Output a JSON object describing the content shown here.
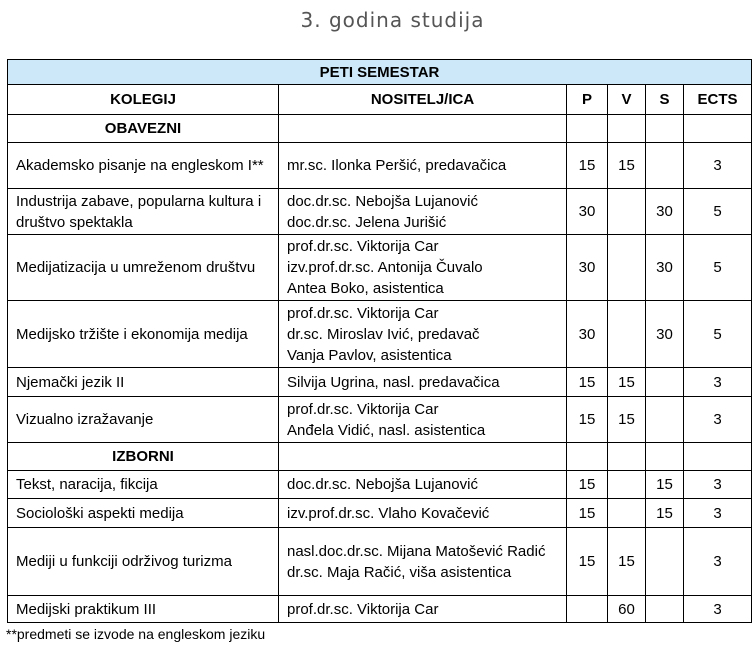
{
  "title": "3. godina studija",
  "semester": "PETI SEMESTAR",
  "headers": [
    "KOLEGIJ",
    "NOSITELJ/ICA",
    "P",
    "V",
    "S",
    "ECTS"
  ],
  "groups": [
    {
      "label": "OBAVEZNI",
      "rows": [
        {
          "kolegij": "Akademsko pisanje na engleskom I**",
          "nositelji": [
            "mr.sc. Ilonka Peršić, predavačica"
          ],
          "p": "15",
          "v": "15",
          "s": "",
          "ects": "3"
        },
        {
          "kolegij": "Industrija zabave, popularna kultura i društvo spektakla",
          "nositelji": [
            "doc.dr.sc. Nebojša Lujanović",
            "doc.dr.sc. Jelena Jurišić"
          ],
          "p": "30",
          "v": "",
          "s": "30",
          "ects": "5"
        },
        {
          "kolegij": "Medijatizacija u umreženom društvu",
          "nositelji": [
            "prof.dr.sc. Viktorija Car",
            "izv.prof.dr.sc. Antonija Čuvalo",
            "Antea Boko, asistentica"
          ],
          "p": "30",
          "v": "",
          "s": "30",
          "ects": "5"
        },
        {
          "kolegij": "Medijsko tržište i ekonomija medija",
          "nositelji": [
            "prof.dr.sc. Viktorija Car",
            "dr.sc. Miroslav Ivić, predavač",
            "Vanja Pavlov, asistentica"
          ],
          "p": "30",
          "v": "",
          "s": "30",
          "ects": "5"
        },
        {
          "kolegij": "Njemački jezik II",
          "nositelji": [
            "Silvija Ugrina, nasl. predavačica"
          ],
          "p": "15",
          "v": "15",
          "s": "",
          "ects": "3"
        },
        {
          "kolegij": "Vizualno izražavanje",
          "nositelji": [
            "prof.dr.sc. Viktorija Car",
            "Anđela Vidić, nasl. asistentica"
          ],
          "p": "15",
          "v": "15",
          "s": "",
          "ects": "3"
        }
      ]
    },
    {
      "label": "IZBORNI",
      "rows": [
        {
          "kolegij": "Tekst, naracija, fikcija",
          "nositelji": [
            "doc.dr.sc. Nebojša Lujanović"
          ],
          "p": "15",
          "v": "",
          "s": "15",
          "ects": "3"
        },
        {
          "kolegij": "Sociološki aspekti medija",
          "nositelji": [
            "izv.prof.dr.sc. Vlaho Kovačević"
          ],
          "p": "15",
          "v": "",
          "s": "15",
          "ects": "3"
        },
        {
          "kolegij": "Mediji u funkciji održivog turizma",
          "nositelji": [
            "nasl.doc.dr.sc. Mijana Matošević Radić",
            "dr.sc. Maja Račić, viša asistentica"
          ],
          "p": "15",
          "v": "15",
          "s": "",
          "ects": "3"
        },
        {
          "kolegij": "Medijski praktikum III",
          "nositelji": [
            "prof.dr.sc. Viktorija Car"
          ],
          "p": "",
          "v": "60",
          "s": "",
          "ects": "3"
        }
      ]
    }
  ],
  "footnote": "**predmeti se izvode na engleskom jeziku",
  "colors": {
    "header_bg": "#cde9f9",
    "title": "#555555"
  }
}
